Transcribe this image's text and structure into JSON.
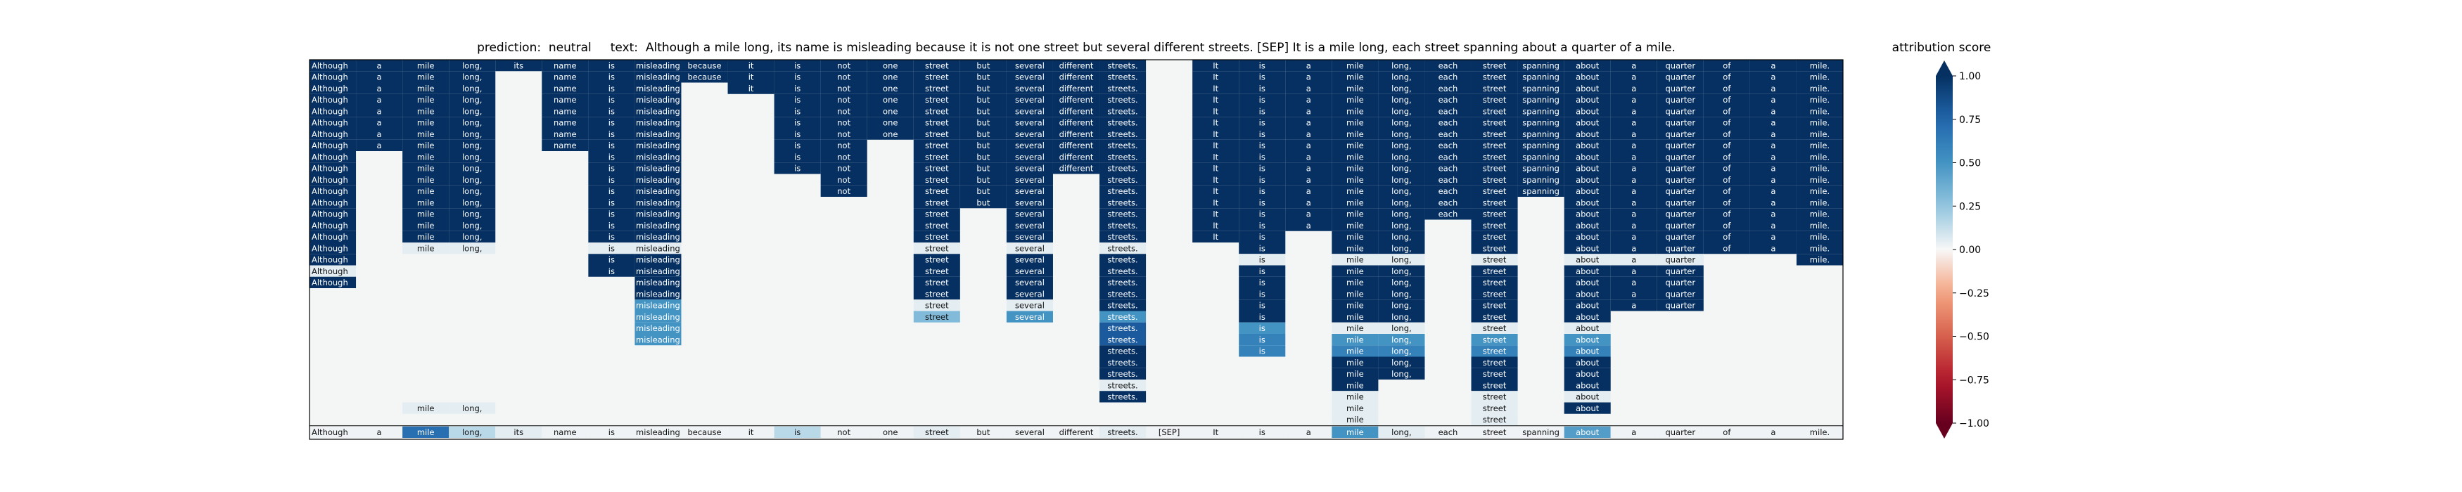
{
  "title": {
    "prediction_label": "prediction:",
    "prediction": "neutral",
    "text_label": "text:",
    "text": "Although a mile long, its name is misleading because it is not one street but several different streets. [SEP] It is a mile long, each street spanning about a quarter of a mile."
  },
  "chart_data": {
    "type": "heatmap",
    "tokens": [
      "Although",
      "a",
      "mile",
      "long,",
      "its",
      "name",
      "is",
      "misleading",
      "because",
      "it",
      "is",
      "not",
      "one",
      "street",
      "but",
      "several",
      "different",
      "streets.",
      "[SEP]",
      "It",
      "is",
      "a",
      "mile",
      "long,",
      "each",
      "street",
      "spanning",
      "about",
      "a",
      "quarter",
      "of",
      "a",
      "mile."
    ],
    "columns": [
      [
        1,
        1,
        1,
        1,
        1,
        1,
        1,
        1,
        1,
        1,
        1,
        1,
        1,
        1,
        1,
        1,
        1,
        1,
        0.05,
        1
      ],
      [
        1,
        1,
        1,
        1,
        1,
        1,
        1,
        1
      ],
      [
        1,
        1,
        1,
        1,
        1,
        1,
        1,
        1,
        1,
        1,
        1,
        1,
        1,
        1,
        1,
        1,
        0.05,
        0,
        0,
        0,
        0,
        0,
        0,
        0,
        0,
        0,
        0,
        0,
        0,
        0,
        0.05
      ],
      [
        1,
        1,
        1,
        1,
        1,
        1,
        1,
        1,
        1,
        1,
        1,
        1,
        1,
        1,
        1,
        1,
        0.05,
        0,
        0,
        0,
        0,
        0,
        0,
        0,
        0,
        0,
        0,
        0,
        0,
        0,
        0.05
      ],
      [
        1
      ],
      [
        1,
        1,
        1,
        1,
        1,
        1,
        1,
        1
      ],
      [
        1,
        1,
        1,
        1,
        1,
        1,
        1,
        1,
        1,
        1,
        1,
        1,
        1,
        1,
        1,
        1,
        0.05,
        1,
        1
      ],
      [
        1,
        1,
        1,
        1,
        1,
        1,
        1,
        1,
        1,
        1,
        1,
        1,
        1,
        1,
        1,
        1,
        0.05,
        1,
        1,
        1,
        1,
        0.5,
        0.5,
        0.5,
        0.5
      ],
      [
        1,
        1
      ],
      [
        1,
        1,
        1
      ],
      [
        1,
        1,
        1,
        1,
        1,
        1,
        1,
        1,
        1,
        1
      ],
      [
        1,
        1,
        1,
        1,
        1,
        1,
        1,
        1,
        1,
        1,
        1,
        1
      ],
      [
        1,
        1,
        1,
        1,
        1,
        1,
        1
      ],
      [
        1,
        1,
        1,
        1,
        1,
        1,
        1,
        1,
        1,
        1,
        1,
        1,
        1,
        1,
        1,
        1,
        0.05,
        1,
        1,
        1,
        1,
        0.05,
        0.3
      ],
      [
        1,
        1,
        1,
        1,
        1,
        1,
        1,
        1,
        1,
        1,
        1,
        1,
        1
      ],
      [
        1,
        1,
        1,
        1,
        1,
        1,
        1,
        1,
        1,
        1,
        1,
        1,
        1,
        1,
        1,
        1,
        0.05,
        1,
        1,
        1,
        1,
        0.05,
        0.5
      ],
      [
        1,
        1,
        1,
        1,
        1,
        1,
        1,
        1,
        1,
        1
      ],
      [
        1,
        1,
        1,
        1,
        1,
        1,
        1,
        1,
        1,
        1,
        1,
        1,
        1,
        1,
        1,
        1,
        0.05,
        1,
        1,
        1,
        1,
        1,
        0.5,
        0.8,
        0.8,
        1,
        1,
        1,
        0.05,
        1
      ],
      [],
      [
        1,
        1,
        1,
        1,
        1,
        1,
        1,
        1,
        1,
        1,
        1,
        1,
        1,
        1,
        1,
        1
      ],
      [
        1,
        1,
        1,
        1,
        1,
        1,
        1,
        1,
        1,
        1,
        1,
        1,
        1,
        1,
        1,
        1,
        1,
        0.05,
        1,
        1,
        1,
        1,
        1,
        0.5,
        0.6,
        0.6
      ],
      [
        1,
        1,
        1,
        1,
        1,
        1,
        1,
        1,
        1,
        1,
        1,
        1,
        1,
        1,
        1
      ],
      [
        1,
        1,
        1,
        1,
        1,
        1,
        1,
        1,
        1,
        1,
        1,
        1,
        1,
        1,
        1,
        1,
        1,
        0.05,
        1,
        1,
        1,
        1,
        1,
        0.05,
        0.5,
        0.6,
        1,
        1,
        1,
        0.05,
        0.05,
        0.05
      ],
      [
        1,
        1,
        1,
        1,
        1,
        1,
        1,
        1,
        1,
        1,
        1,
        1,
        1,
        1,
        1,
        1,
        1,
        0.05,
        1,
        1,
        1,
        1,
        1,
        0.05,
        0.5,
        0.6,
        1,
        1
      ],
      [
        1,
        1,
        1,
        1,
        1,
        1,
        1,
        1,
        1,
        1,
        1,
        1,
        1,
        1
      ],
      [
        1,
        1,
        1,
        1,
        1,
        1,
        1,
        1,
        1,
        1,
        1,
        1,
        1,
        1,
        1,
        1,
        1,
        0.05,
        1,
        1,
        1,
        1,
        1,
        0.05,
        0.5,
        0.6,
        1,
        1,
        1,
        0.05,
        0.05,
        0.05
      ],
      [
        1,
        1,
        1,
        1,
        1,
        1,
        1,
        1,
        1,
        1,
        1,
        1
      ],
      [
        1,
        1,
        1,
        1,
        1,
        1,
        1,
        1,
        1,
        1,
        1,
        1,
        1,
        1,
        1,
        1,
        1,
        0.05,
        1,
        1,
        1,
        1,
        1,
        0.05,
        0.5,
        0.6,
        1,
        1,
        1,
        0.05,
        1
      ],
      [
        1,
        1,
        1,
        1,
        1,
        1,
        1,
        1,
        1,
        1,
        1,
        1,
        1,
        1,
        1,
        1,
        1,
        0.05,
        1,
        1,
        1,
        1
      ],
      [
        1,
        1,
        1,
        1,
        1,
        1,
        1,
        1,
        1,
        1,
        1,
        1,
        1,
        1,
        1,
        1,
        1,
        0.05,
        1,
        1,
        1,
        1
      ],
      [
        1,
        1,
        1,
        1,
        1,
        1,
        1,
        1,
        1,
        1,
        1,
        1,
        1,
        1,
        1,
        1,
        1
      ],
      [
        1,
        1,
        1,
        1,
        1,
        1,
        1,
        1,
        1,
        1,
        1,
        1,
        1,
        1,
        1,
        1,
        1
      ],
      [
        1,
        1,
        1,
        1,
        1,
        1,
        1,
        1,
        1,
        1,
        1,
        1,
        1,
        1,
        1,
        1,
        1,
        1
      ]
    ],
    "bottom_row": [
      0.02,
      0.02,
      0.7,
      0.15,
      0.05,
      0.02,
      0.02,
      0.02,
      0.02,
      0.02,
      0.15,
      0.02,
      0.02,
      0.05,
      0.02,
      0.02,
      0.02,
      0.05,
      0.02,
      0.02,
      0.02,
      0.02,
      0.5,
      0.05,
      0.02,
      0.02,
      0.02,
      0.45,
      0.02,
      0.02,
      0.02,
      0.02,
      0.02
    ],
    "colorbar": {
      "title": "attribution score",
      "range": [
        -1.0,
        1.0
      ],
      "ticks": [
        "1.00",
        "0.75",
        "0.50",
        "0.25",
        "0.00",
        "−0.25",
        "−0.50",
        "−0.75",
        "−1.00"
      ]
    }
  }
}
